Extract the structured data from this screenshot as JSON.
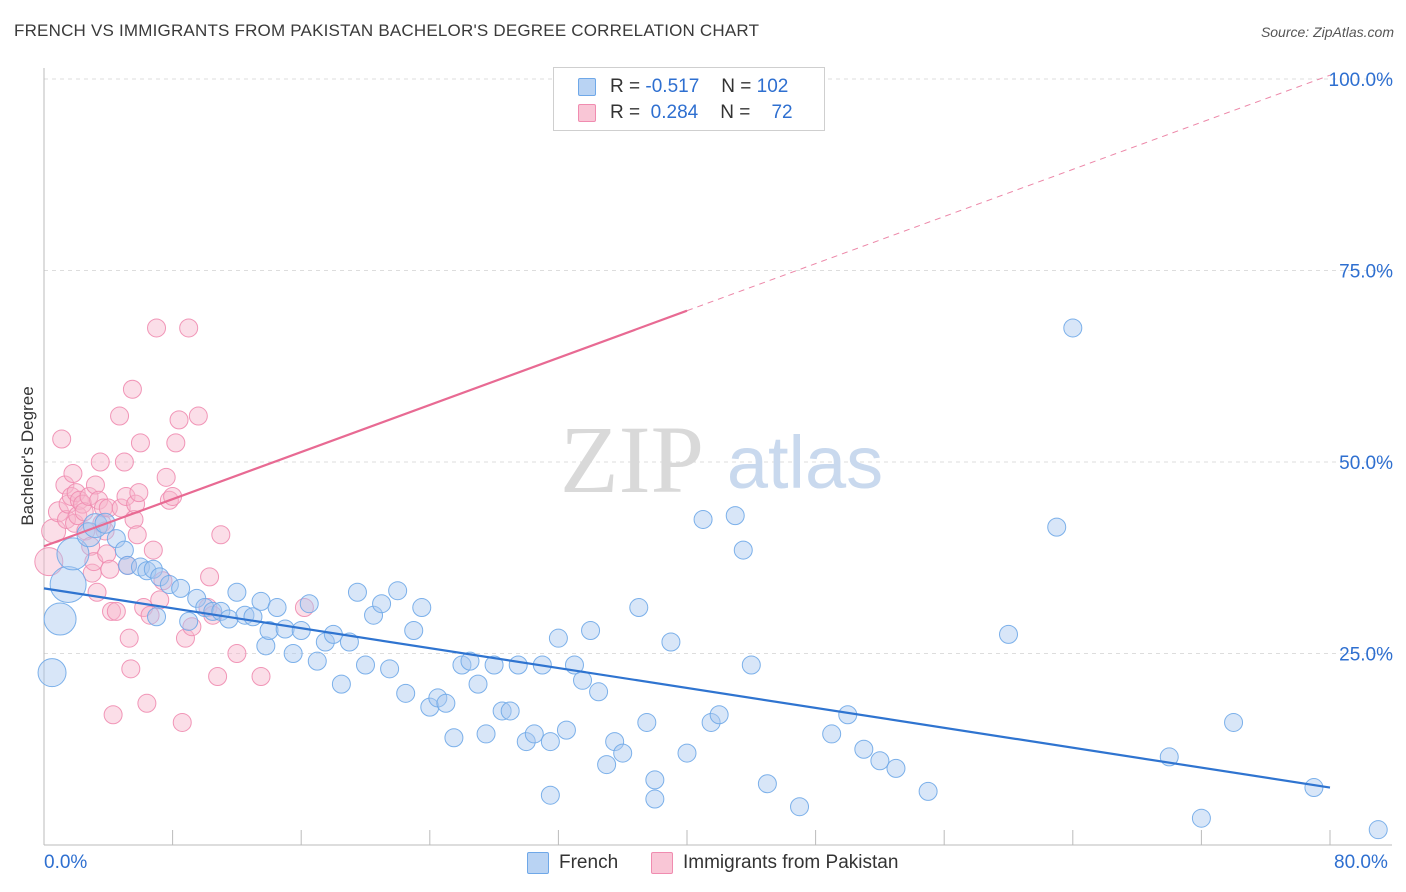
{
  "title": "FRENCH VS IMMIGRANTS FROM PAKISTAN BACHELOR'S DEGREE CORRELATION CHART",
  "source": "Source: ZipAtlas.com",
  "watermark": {
    "zip": "ZIP",
    "atlas": "atlas"
  },
  "legend": {
    "rows": [
      {
        "r_label": "R =",
        "r_value": "-0.517",
        "n_label": "N =",
        "n_value": "102",
        "color": "#6fa8e8"
      },
      {
        "r_label": "R =",
        "r_value": "0.284",
        "n_label": "N =",
        "n_value": "72",
        "color": "#f08cb0"
      }
    ]
  },
  "bottom_legend": {
    "french": "French",
    "pakistan": "Immigrants from Pakistan"
  },
  "x_left_label": "0.0%",
  "x_right_label": "80.0%",
  "chart_data": {
    "type": "scatter",
    "title": "FRENCH VS IMMIGRANTS FROM PAKISTAN BACHELOR'S DEGREE CORRELATION CHART",
    "xlabel": "",
    "ylabel": "Bachelor's Degree",
    "xlim": [
      0,
      80
    ],
    "ylim": [
      0,
      100
    ],
    "x_tick_labels": [
      "0.0%",
      "80.0%"
    ],
    "y_tick_labels": [
      "25.0%",
      "50.0%",
      "75.0%",
      "100.0%"
    ],
    "y_ticks": [
      25,
      50,
      75,
      100
    ],
    "grid": "horizontal dashed",
    "legend_position": "top-center",
    "colors": {
      "french": "#2f74d0",
      "french_fill": "#a9c8f0",
      "pakistan": "#e86a93",
      "pakistan_fill": "#f6b6cb"
    },
    "series": [
      {
        "name": "French",
        "r": -0.517,
        "n": 102,
        "trend": {
          "x": [
            0,
            80
          ],
          "y": [
            33.5,
            7.5
          ],
          "style": "solid"
        },
        "points": [
          [
            0.5,
            22.5,
            14
          ],
          [
            1,
            29.5,
            16
          ],
          [
            1.5,
            34,
            18
          ],
          [
            1.8,
            38,
            16
          ],
          [
            2.8,
            40.5,
            12
          ],
          [
            3.2,
            41.7,
            12
          ],
          [
            3.8,
            42,
            10
          ],
          [
            4.5,
            40,
            9
          ],
          [
            5,
            38.5,
            9
          ],
          [
            5.2,
            36.5,
            9
          ],
          [
            6,
            36.3,
            9
          ],
          [
            6.4,
            35.8,
            9
          ],
          [
            6.8,
            36,
            9
          ],
          [
            7,
            29.8,
            9
          ],
          [
            7.2,
            35,
            9
          ],
          [
            7.8,
            34,
            9
          ],
          [
            8.5,
            33.5,
            9
          ],
          [
            9.0,
            29.2,
            9
          ],
          [
            9.5,
            32.2,
            9
          ],
          [
            10,
            31,
            9
          ],
          [
            10.5,
            30.5,
            9
          ],
          [
            11,
            30.5,
            9
          ],
          [
            11.5,
            29.5,
            9
          ],
          [
            12,
            33,
            9
          ],
          [
            12.5,
            30,
            9
          ],
          [
            13,
            29.8,
            9
          ],
          [
            13.5,
            31.8,
            9
          ],
          [
            13.8,
            26,
            9
          ],
          [
            14,
            28,
            9
          ],
          [
            14.5,
            31,
            9
          ],
          [
            15,
            28.2,
            9
          ],
          [
            15.5,
            25,
            9
          ],
          [
            16,
            28,
            9
          ],
          [
            16.5,
            31.5,
            9
          ],
          [
            17,
            24,
            9
          ],
          [
            17.5,
            26.5,
            9
          ],
          [
            18,
            27.5,
            9
          ],
          [
            18.5,
            21,
            9
          ],
          [
            19,
            26.5,
            9
          ],
          [
            19.5,
            33,
            9
          ],
          [
            20,
            23.5,
            9
          ],
          [
            20.5,
            30,
            9
          ],
          [
            21,
            31.5,
            9
          ],
          [
            21.5,
            23,
            9
          ],
          [
            22,
            33.2,
            9
          ],
          [
            22.5,
            19.8,
            9
          ],
          [
            23,
            28,
            9
          ],
          [
            23.5,
            31,
            9
          ],
          [
            24,
            18,
            9
          ],
          [
            24.5,
            19.2,
            9
          ],
          [
            25,
            18.5,
            9
          ],
          [
            25.5,
            14,
            9
          ],
          [
            26,
            23.5,
            9
          ],
          [
            26.5,
            24,
            9
          ],
          [
            27,
            21,
            9
          ],
          [
            27.5,
            14.5,
            9
          ],
          [
            28,
            23.5,
            9
          ],
          [
            28.5,
            17.5,
            9
          ],
          [
            29,
            17.5,
            9
          ],
          [
            29.5,
            23.5,
            9
          ],
          [
            30,
            13.5,
            9
          ],
          [
            30.5,
            14.5,
            9
          ],
          [
            31,
            23.5,
            9
          ],
          [
            31.5,
            13.5,
            9
          ],
          [
            32,
            27,
            9
          ],
          [
            32.5,
            15,
            9
          ],
          [
            33,
            23.5,
            9
          ],
          [
            33.5,
            21.5,
            9
          ],
          [
            34,
            28,
            9
          ],
          [
            34.5,
            20,
            9
          ],
          [
            35,
            10.5,
            9
          ],
          [
            35.5,
            13.5,
            9
          ],
          [
            36,
            12,
            9
          ],
          [
            37,
            31,
            9
          ],
          [
            37.5,
            16,
            9
          ],
          [
            38,
            8.5,
            9
          ],
          [
            39,
            26.5,
            9
          ],
          [
            40,
            12,
            9
          ],
          [
            41,
            42.5,
            9
          ],
          [
            41.5,
            16,
            9
          ],
          [
            42,
            17,
            9
          ],
          [
            43,
            43,
            9
          ],
          [
            43.5,
            38.5,
            9
          ],
          [
            44,
            23.5,
            9
          ],
          [
            45,
            8,
            9
          ],
          [
            47,
            5,
            9
          ],
          [
            49,
            14.5,
            9
          ],
          [
            50,
            17,
            9
          ],
          [
            51,
            12.5,
            9
          ],
          [
            52,
            11,
            9
          ],
          [
            53,
            10,
            9
          ],
          [
            55,
            7,
            9
          ],
          [
            60,
            27.5,
            9
          ],
          [
            63,
            41.5,
            9
          ],
          [
            64,
            67.5,
            9
          ],
          [
            70,
            11.5,
            9
          ],
          [
            72,
            3.5,
            9
          ],
          [
            74,
            16,
            9
          ],
          [
            79,
            7.5,
            9
          ],
          [
            83,
            2,
            9
          ],
          [
            31.5,
            6.5,
            9
          ],
          [
            38,
            6,
            9
          ]
        ]
      },
      {
        "name": "Immigrants from Pakistan",
        "r": 0.284,
        "n": 72,
        "trend": {
          "x": [
            0,
            80
          ],
          "y": [
            39,
            100.5
          ],
          "solid_until_x": 40,
          "style": "solid-then-dashed"
        },
        "points": [
          [
            0.3,
            37,
            14
          ],
          [
            0.6,
            41,
            12
          ],
          [
            0.9,
            43.5,
            10
          ],
          [
            1.1,
            53,
            9
          ],
          [
            1.3,
            47,
            9
          ],
          [
            1.4,
            42.5,
            9
          ],
          [
            1.5,
            44.5,
            9
          ],
          [
            1.7,
            45.5,
            9
          ],
          [
            1.8,
            48.5,
            9
          ],
          [
            1.9,
            42,
            9
          ],
          [
            2.0,
            46,
            9
          ],
          [
            2.1,
            43,
            9
          ],
          [
            2.2,
            45,
            9
          ],
          [
            2.4,
            44.5,
            9
          ],
          [
            2.5,
            43.5,
            9
          ],
          [
            2.6,
            41,
            9
          ],
          [
            2.8,
            45.5,
            9
          ],
          [
            2.9,
            39,
            9
          ],
          [
            3.0,
            35.5,
            9
          ],
          [
            3.1,
            37,
            9
          ],
          [
            3.2,
            47,
            9
          ],
          [
            3.3,
            33,
            9
          ],
          [
            3.4,
            45,
            9
          ],
          [
            3.5,
            50,
            9
          ],
          [
            3.6,
            42,
            9
          ],
          [
            3.7,
            44,
            9
          ],
          [
            3.8,
            41,
            9
          ],
          [
            3.9,
            38,
            9
          ],
          [
            4.0,
            44,
            9
          ],
          [
            4.1,
            36,
            9
          ],
          [
            4.2,
            30.5,
            9
          ],
          [
            4.3,
            17,
            9
          ],
          [
            4.5,
            30.5,
            9
          ],
          [
            4.7,
            56,
            9
          ],
          [
            4.8,
            44,
            9
          ],
          [
            5.0,
            50,
            9
          ],
          [
            5.1,
            45.5,
            9
          ],
          [
            5.2,
            36.5,
            9
          ],
          [
            5.3,
            27,
            9
          ],
          [
            5.4,
            23,
            9
          ],
          [
            5.5,
            59.5,
            9
          ],
          [
            5.6,
            42.5,
            9
          ],
          [
            5.7,
            44.5,
            9
          ],
          [
            5.8,
            40.5,
            9
          ],
          [
            5.9,
            46,
            9
          ],
          [
            6.0,
            52.5,
            9
          ],
          [
            6.2,
            31,
            9
          ],
          [
            6.4,
            18.5,
            9
          ],
          [
            6.6,
            30,
            9
          ],
          [
            6.8,
            38.5,
            9
          ],
          [
            7.0,
            67.5,
            9
          ],
          [
            7.2,
            32,
            9
          ],
          [
            7.4,
            34.5,
            9
          ],
          [
            7.6,
            48,
            9
          ],
          [
            7.8,
            45,
            9
          ],
          [
            8.0,
            45.5,
            9
          ],
          [
            8.2,
            52.5,
            9
          ],
          [
            8.4,
            55.5,
            9
          ],
          [
            8.6,
            16,
            9
          ],
          [
            8.8,
            27,
            9
          ],
          [
            9.0,
            67.5,
            9
          ],
          [
            9.2,
            28.5,
            9
          ],
          [
            9.6,
            56,
            9
          ],
          [
            10.2,
            31,
            9
          ],
          [
            10.3,
            35,
            9
          ],
          [
            10.5,
            30,
            9
          ],
          [
            10.8,
            22,
            9
          ],
          [
            11,
            40.5,
            9
          ],
          [
            12,
            25,
            9
          ],
          [
            13.5,
            22,
            9
          ],
          [
            16.2,
            31,
            9
          ],
          [
            35.5,
            100,
            11
          ]
        ]
      }
    ]
  }
}
